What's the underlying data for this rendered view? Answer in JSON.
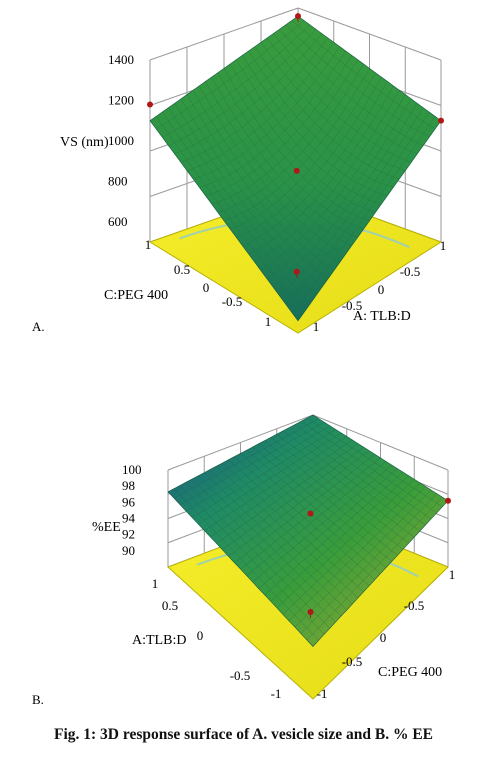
{
  "caption": "Fig. 1: 3D response surface of A. vesicle size and B. % EE",
  "colors": {
    "floor": "#f2ea22",
    "floor_edge": "#b8b000",
    "contour": "#9fd0b0",
    "grid": "#9a9a9a",
    "point": "#b01818",
    "surface_low": "#1d8a5e",
    "surface_high": "#3b9e3a",
    "surface_yellow": "#b8b030",
    "surface_blue": "#1a4d8c"
  },
  "chart_data": [
    {
      "panel_label": "A.",
      "type": "surface3d",
      "zlabel": "VS (nm)",
      "zlim": [
        500,
        1400
      ],
      "zticks": [
        "1400",
        "1200",
        "1000",
        "800",
        "600"
      ],
      "left_axis": {
        "label": "C:PEG 400",
        "range": [
          -1,
          1
        ],
        "ticks": [
          "1",
          "0.5",
          "0",
          "-0.5",
          "1"
        ]
      },
      "right_axis": {
        "label": "A: TLB:D",
        "range": [
          -1,
          1
        ],
        "ticks": [
          "1",
          "-0.5",
          "0",
          "-0.5",
          "1"
        ]
      },
      "surface_corners": {
        "left": 1100,
        "right": 1100,
        "back": 1360,
        "front": 560
      },
      "surface_center": 900,
      "design_points": [
        1360,
        1180,
        1100,
        960,
        530
      ]
    },
    {
      "panel_label": "B.",
      "type": "surface3d",
      "zlabel": "%EE",
      "zlim": [
        88,
        100
      ],
      "zticks": [
        "100",
        "98",
        "96",
        "94",
        "92",
        "90"
      ],
      "left_axis": {
        "label": "A:TLB:D",
        "range": [
          -1,
          1
        ],
        "ticks": [
          "1",
          "0.5",
          "0",
          "-0.5",
          "-1"
        ]
      },
      "right_axis": {
        "label": "C:PEG 400",
        "range": [
          -1,
          1
        ],
        "ticks": [
          "1",
          "-0.5",
          "0",
          "-0.5",
          "-1"
        ]
      },
      "surface_corners": {
        "left": 97.3,
        "right": 96.2,
        "back": 100,
        "front": 94.5
      },
      "design_points": [
        96.8,
        96.2,
        94.4
      ]
    }
  ]
}
